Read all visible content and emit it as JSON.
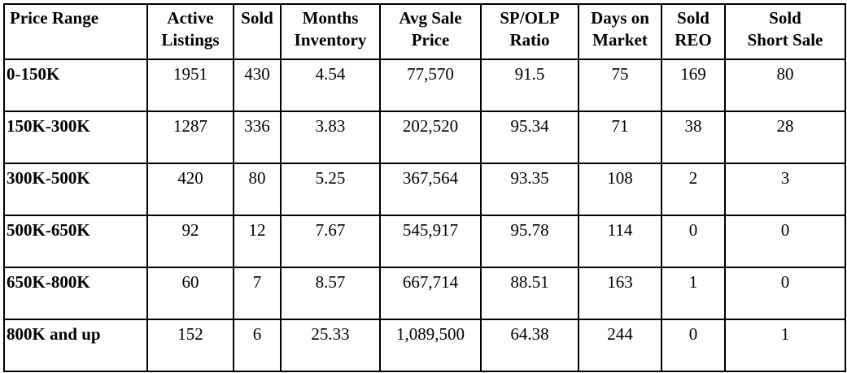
{
  "table": {
    "headers": [
      [
        "Price Range"
      ],
      [
        "Active",
        "Listings"
      ],
      [
        "Sold"
      ],
      [
        "Months",
        "Inventory"
      ],
      [
        "Avg Sale",
        "Price"
      ],
      [
        "SP/OLP",
        "Ratio"
      ],
      [
        "Days on",
        "Market"
      ],
      [
        "Sold",
        "REO"
      ],
      [
        "Sold",
        "Short Sale"
      ]
    ],
    "rows": [
      [
        "0-150K",
        "1951",
        "430",
        "4.54",
        "77,570",
        "91.5",
        "75",
        "169",
        "80"
      ],
      [
        "150K-300K",
        "1287",
        "336",
        "3.83",
        "202,520",
        "95.34",
        "71",
        "38",
        "28"
      ],
      [
        "300K-500K",
        "420",
        "80",
        "5.25",
        "367,564",
        "93.35",
        "108",
        "2",
        "3"
      ],
      [
        "500K-650K",
        "92",
        "12",
        "7.67",
        "545,917",
        "95.78",
        "114",
        "0",
        "0"
      ],
      [
        "650K-800K",
        "60",
        "7",
        "8.57",
        "667,714",
        "88.51",
        "163",
        "1",
        "0"
      ],
      [
        "800K and up",
        "152",
        "6",
        "25.33",
        "1,089,500",
        "64.38",
        "244",
        "0",
        "1"
      ]
    ]
  }
}
